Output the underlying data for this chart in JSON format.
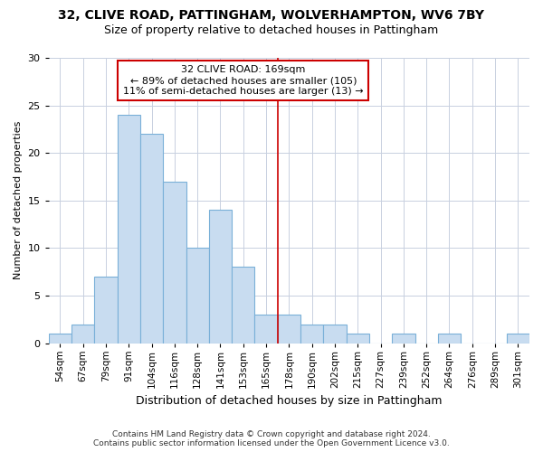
{
  "title1": "32, CLIVE ROAD, PATTINGHAM, WOLVERHAMPTON, WV6 7BY",
  "title2": "Size of property relative to detached houses in Pattingham",
  "xlabel": "Distribution of detached houses by size in Pattingham",
  "ylabel": "Number of detached properties",
  "footnote": "Contains HM Land Registry data © Crown copyright and database right 2024.\nContains public sector information licensed under the Open Government Licence v3.0.",
  "bin_labels": [
    "54sqm",
    "67sqm",
    "79sqm",
    "91sqm",
    "104sqm",
    "116sqm",
    "128sqm",
    "141sqm",
    "153sqm",
    "165sqm",
    "178sqm",
    "190sqm",
    "202sqm",
    "215sqm",
    "227sqm",
    "239sqm",
    "252sqm",
    "264sqm",
    "276sqm",
    "289sqm",
    "301sqm"
  ],
  "bar_heights": [
    1,
    2,
    7,
    24,
    22,
    17,
    10,
    14,
    8,
    3,
    3,
    2,
    2,
    1,
    0,
    1,
    0,
    1,
    0,
    0,
    1
  ],
  "bar_color": "#c8dcf0",
  "bar_edge_color": "#7ab0d8",
  "grid_color": "#c8d0e0",
  "fig_background": "#ffffff",
  "axes_background": "#ffffff",
  "vline_x": 9.5,
  "vline_color": "#cc0000",
  "annotation_text": "32 CLIVE ROAD: 169sqm\n← 89% of detached houses are smaller (105)\n11% of semi-detached houses are larger (13) →",
  "annotation_box_facecolor": "#ffffff",
  "annotation_box_edgecolor": "#cc0000",
  "ylim": [
    0,
    30
  ],
  "yticks": [
    0,
    5,
    10,
    15,
    20,
    25,
    30
  ],
  "title1_fontsize": 10,
  "title2_fontsize": 9,
  "ylabel_fontsize": 8,
  "xlabel_fontsize": 9,
  "tick_fontsize": 8,
  "xtick_fontsize": 7.5,
  "annot_fontsize": 8,
  "footnote_fontsize": 6.5
}
